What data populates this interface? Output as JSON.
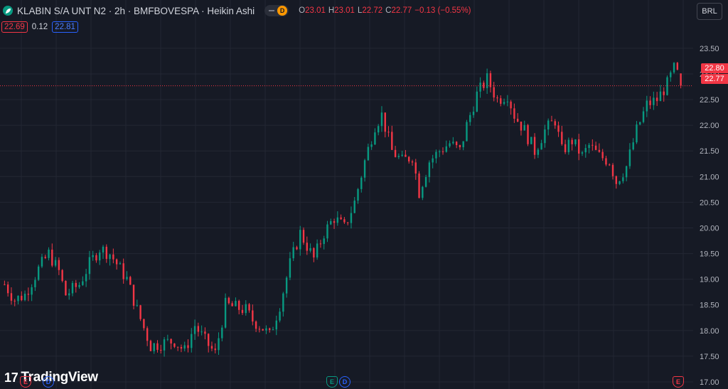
{
  "header": {
    "symbol_icon": "leaf-icon",
    "title": "KLABIN S/A UNT N2 · 2h · BMFBOVESPA · Heikin Ashi",
    "dividend_badge": "D",
    "ohlc": {
      "o_label": "O",
      "o": "23.01",
      "h_label": "H",
      "h": "23.01",
      "l_label": "L",
      "l": "22.72",
      "c_label": "C",
      "c": "22.77",
      "change": "−0.13 (−0.55%)"
    }
  },
  "quote": {
    "bid": "22.69",
    "spread": "0.12",
    "ask": "22.81"
  },
  "currency": "BRL",
  "price_tags": {
    "upper": "22.80",
    "lower": "22.77"
  },
  "logo": {
    "mark": "17",
    "text": "TradingView"
  },
  "events": [
    {
      "type": "E",
      "color": "#f23645"
    },
    {
      "type": "D",
      "color": "#2962ff"
    },
    {
      "type": "E",
      "color": "#089981"
    },
    {
      "type": "D",
      "color": "#2962ff"
    },
    {
      "type": "E",
      "color": "#f23645"
    }
  ],
  "colors": {
    "up": "#089981",
    "down": "#f23645",
    "background": "#161a25",
    "grid": "#232733",
    "accent": "#2962ff"
  },
  "chart_data": {
    "type": "candlestick",
    "style": "Heikin Ashi",
    "interval": "2h",
    "y_axis": {
      "ticks": [
        23.5,
        23.0,
        22.5,
        22.0,
        21.5,
        21.0,
        20.5,
        20.0,
        19.5,
        19.0,
        18.5,
        18.0,
        17.5,
        17.0
      ],
      "ylim": [
        17.0,
        23.72
      ],
      "position": "right"
    },
    "last_price": 22.77,
    "grid": true,
    "close_path": [
      [
        0,
        18.9
      ],
      [
        3,
        18.6
      ],
      [
        6,
        18.7
      ],
      [
        10,
        19.2
      ],
      [
        13,
        19.5
      ],
      [
        16,
        19.15
      ],
      [
        18,
        18.7
      ],
      [
        22,
        18.9
      ],
      [
        25,
        19.3
      ],
      [
        28,
        19.6
      ],
      [
        31,
        19.5
      ],
      [
        33,
        19.3
      ],
      [
        36,
        19.0
      ],
      [
        39,
        18.4
      ],
      [
        43,
        17.7
      ],
      [
        46,
        17.75
      ],
      [
        50,
        17.8
      ],
      [
        53,
        17.6
      ],
      [
        56,
        18.1
      ],
      [
        59,
        17.8
      ],
      [
        62,
        17.55
      ],
      [
        65,
        18.5
      ],
      [
        68,
        18.45
      ],
      [
        71,
        18.4
      ],
      [
        73,
        18.2
      ],
      [
        76,
        18.05
      ],
      [
        78,
        17.9
      ],
      [
        81,
        18.5
      ],
      [
        84,
        19.3
      ],
      [
        87,
        19.9
      ],
      [
        91,
        19.4
      ],
      [
        94,
        19.9
      ],
      [
        97,
        20.2
      ],
      [
        100,
        20.0
      ],
      [
        103,
        20.5
      ],
      [
        106,
        21.3
      ],
      [
        109,
        22.0
      ],
      [
        111,
        22.2
      ],
      [
        114,
        21.5
      ],
      [
        117,
        21.3
      ],
      [
        120,
        21.4
      ],
      [
        122,
        20.7
      ],
      [
        125,
        21.3
      ],
      [
        128,
        21.5
      ],
      [
        131,
        21.65
      ],
      [
        134,
        21.5
      ],
      [
        136,
        22.0
      ],
      [
        139,
        22.6
      ],
      [
        142,
        22.9
      ],
      [
        145,
        22.5
      ],
      [
        148,
        22.6
      ],
      [
        150,
        22.2
      ],
      [
        153,
        21.9
      ],
      [
        156,
        21.5
      ],
      [
        159,
        21.9
      ],
      [
        162,
        22.1
      ],
      [
        164,
        21.5
      ],
      [
        167,
        21.7
      ],
      [
        170,
        21.4
      ],
      [
        172,
        21.6
      ],
      [
        175,
        21.4
      ],
      [
        178,
        21.3
      ],
      [
        180,
        20.9
      ],
      [
        183,
        21.2
      ],
      [
        186,
        21.9
      ],
      [
        189,
        22.4
      ],
      [
        192,
        22.5
      ],
      [
        195,
        22.8
      ],
      [
        197,
        23.1
      ],
      [
        199,
        22.9
      ]
    ]
  }
}
